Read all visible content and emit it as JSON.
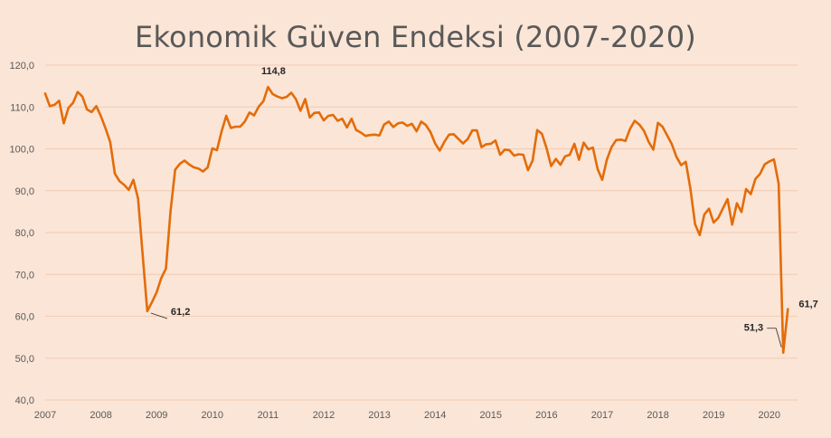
{
  "chart_data": {
    "type": "line",
    "title": "Ekonomik Güven Endeksi (2007-2020)",
    "xlabel": "",
    "ylabel": "",
    "ylim": [
      40,
      120
    ],
    "yticks": [
      "40,0",
      "50,0",
      "60,0",
      "70,0",
      "80,0",
      "90,0",
      "100,0",
      "110,0",
      "120,0"
    ],
    "xlim": [
      2007,
      2020.4
    ],
    "xticks": [
      "2007",
      "2008",
      "2009",
      "2010",
      "2011",
      "2012",
      "2013",
      "2014",
      "2015",
      "2016",
      "2017",
      "2018",
      "2019",
      "2020"
    ],
    "grid": true,
    "legend": "none",
    "line_color": "#e36c09",
    "series": [
      {
        "values": [
          113.2,
          110.2,
          110.5,
          111.5,
          106.1,
          109.8,
          111.0,
          113.6,
          112.5,
          109.4,
          108.8,
          110.2,
          107.8,
          104.9,
          101.6,
          94.1,
          92.3,
          91.4,
          90.2,
          92.6,
          88.1,
          74.6,
          61.2,
          63.4,
          65.7,
          69.1,
          71.4,
          85.1,
          95.0,
          96.4,
          97.2,
          96.3,
          95.6,
          95.3,
          94.6,
          95.6,
          100.1,
          99.7,
          104.2,
          107.9,
          105.0,
          105.3,
          105.3,
          106.5,
          108.7,
          108.0,
          110.1,
          111.4,
          114.8,
          113.1,
          112.5,
          112.1,
          112.4,
          113.4,
          111.9,
          109.1,
          111.9,
          107.5,
          108.6,
          108.7,
          106.8,
          107.9,
          108.1,
          106.7,
          107.2,
          105.1,
          107.2,
          104.5,
          103.9,
          103.1,
          103.3,
          103.4,
          103.2,
          105.8,
          106.5,
          105.2,
          106.1,
          106.3,
          105.5,
          106.0,
          104.2,
          106.5,
          105.7,
          104.0,
          101.3,
          99.6,
          101.7,
          103.4,
          103.5,
          102.4,
          101.3,
          102.3,
          104.4,
          104.4,
          100.4,
          101.1,
          101.2,
          102.0,
          98.6,
          99.8,
          99.7,
          98.4,
          98.7,
          98.6,
          94.9,
          97.2,
          104.5,
          103.6,
          100.2,
          95.9,
          97.6,
          96.2,
          98.2,
          98.6,
          101.2,
          97.4,
          101.5,
          99.9,
          100.3,
          95.2,
          92.6,
          97.4,
          100.4,
          102.1,
          102.2,
          101.9,
          104.8,
          106.7,
          105.8,
          104.3,
          101.7,
          99.8,
          106.2,
          105.3,
          103.2,
          101.1,
          98.1,
          96.1,
          96.9,
          90.5,
          82.0,
          79.4,
          84.3,
          85.7,
          82.4,
          83.5,
          85.8,
          88.0,
          81.9,
          87.0,
          84.9,
          90.4,
          89.2,
          92.8,
          94.0,
          96.3,
          97.0,
          97.5,
          91.7,
          51.3,
          61.7
        ],
        "annotations": [
          {
            "label": "61,2",
            "value": 61.2
          },
          {
            "label": "114,8",
            "value": 114.8
          },
          {
            "label": "51,3",
            "value": 51.3
          },
          {
            "label": "61,7",
            "value": 61.7
          }
        ]
      }
    ]
  }
}
